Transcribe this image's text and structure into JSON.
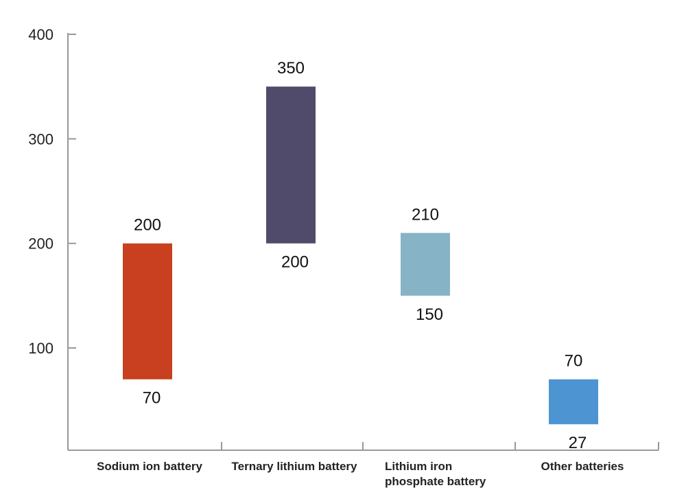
{
  "chart_data": {
    "type": "bar",
    "subtype": "floating-range",
    "categories": [
      "Sodium ion battery",
      "Ternary lithium battery",
      "Lithium iron phosphate battery",
      "Other batteries"
    ],
    "category_lines": [
      [
        "Sodium ion battery"
      ],
      [
        "Ternary lithium battery"
      ],
      [
        "Lithium iron",
        "phosphate battery"
      ],
      [
        "Other batteries"
      ]
    ],
    "low": [
      70,
      200,
      150,
      27
    ],
    "high": [
      200,
      350,
      210,
      70
    ],
    "low_labels": [
      "70",
      "200",
      "150",
      "27"
    ],
    "high_labels": [
      "200",
      "350",
      "210",
      "70"
    ],
    "colors": [
      "#c8401f",
      "#504a6b",
      "#86b3c6",
      "#4d95d2"
    ],
    "yticks": [
      100,
      200,
      300,
      400
    ],
    "ytick_labels": [
      "100",
      "200",
      "300",
      "400"
    ],
    "ylim": [
      0,
      400
    ],
    "grid": false,
    "legend": "none",
    "title": "",
    "xlabel": "",
    "ylabel": ""
  }
}
